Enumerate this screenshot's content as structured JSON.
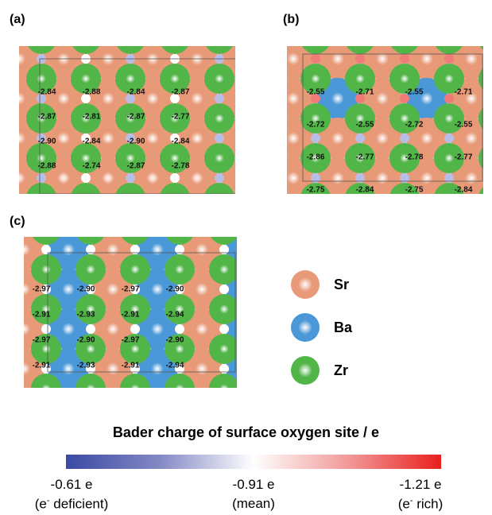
{
  "panels": [
    {
      "label": "(a)",
      "values": [
        [
          "-2.84",
          "-2.88",
          "-2.84",
          "-2.87"
        ],
        [
          "-2.87",
          "-2.81",
          "-2.87",
          "-2.77"
        ],
        [
          "-2.90",
          "-2.84",
          "-2.90",
          "-2.84"
        ],
        [
          "-2.88",
          "-2.74",
          "-2.87",
          "-2.78"
        ]
      ]
    },
    {
      "label": "(b)",
      "values": [
        [
          "-2.55",
          "-2.71",
          "-2.55",
          "-2.71"
        ],
        [
          "-2.72",
          "-2.55",
          "-2.72",
          "-2.55"
        ],
        [
          "-2.86",
          "-2.77",
          "-2.78",
          "-2.77"
        ],
        [
          "-2.75",
          "-2.84",
          "-2.75",
          "-2.84"
        ]
      ]
    },
    {
      "label": "(c)",
      "values": [
        [
          "-2.97",
          "-2.90",
          "-2.97",
          "-2.90"
        ],
        [
          "-2.91",
          "-2.93",
          "-2.91",
          "-2.94"
        ],
        [
          "-2.97",
          "-2.90",
          "-2.97",
          "-2.90"
        ],
        [
          "-2.91",
          "-2.93",
          "-2.91",
          "-2.94"
        ]
      ]
    }
  ],
  "legend": [
    {
      "label": "Sr",
      "color": "#e89a78"
    },
    {
      "label": "Ba",
      "color": "#4a98d8"
    },
    {
      "label": "Zr",
      "color": "#52b548"
    }
  ],
  "colorbar": {
    "title": "Bader charge of surface oxygen site / e",
    "min_label": "-0.61 e",
    "min_note_pre": "(e",
    "min_note_sup": "-",
    "min_note_post": " deficient)",
    "mid_label": "-0.91 e",
    "mid_note": "(mean)",
    "max_label": "-1.21 e",
    "max_note_pre": "(e",
    "max_note_sup": "-",
    "max_note_post": " rich)"
  }
}
